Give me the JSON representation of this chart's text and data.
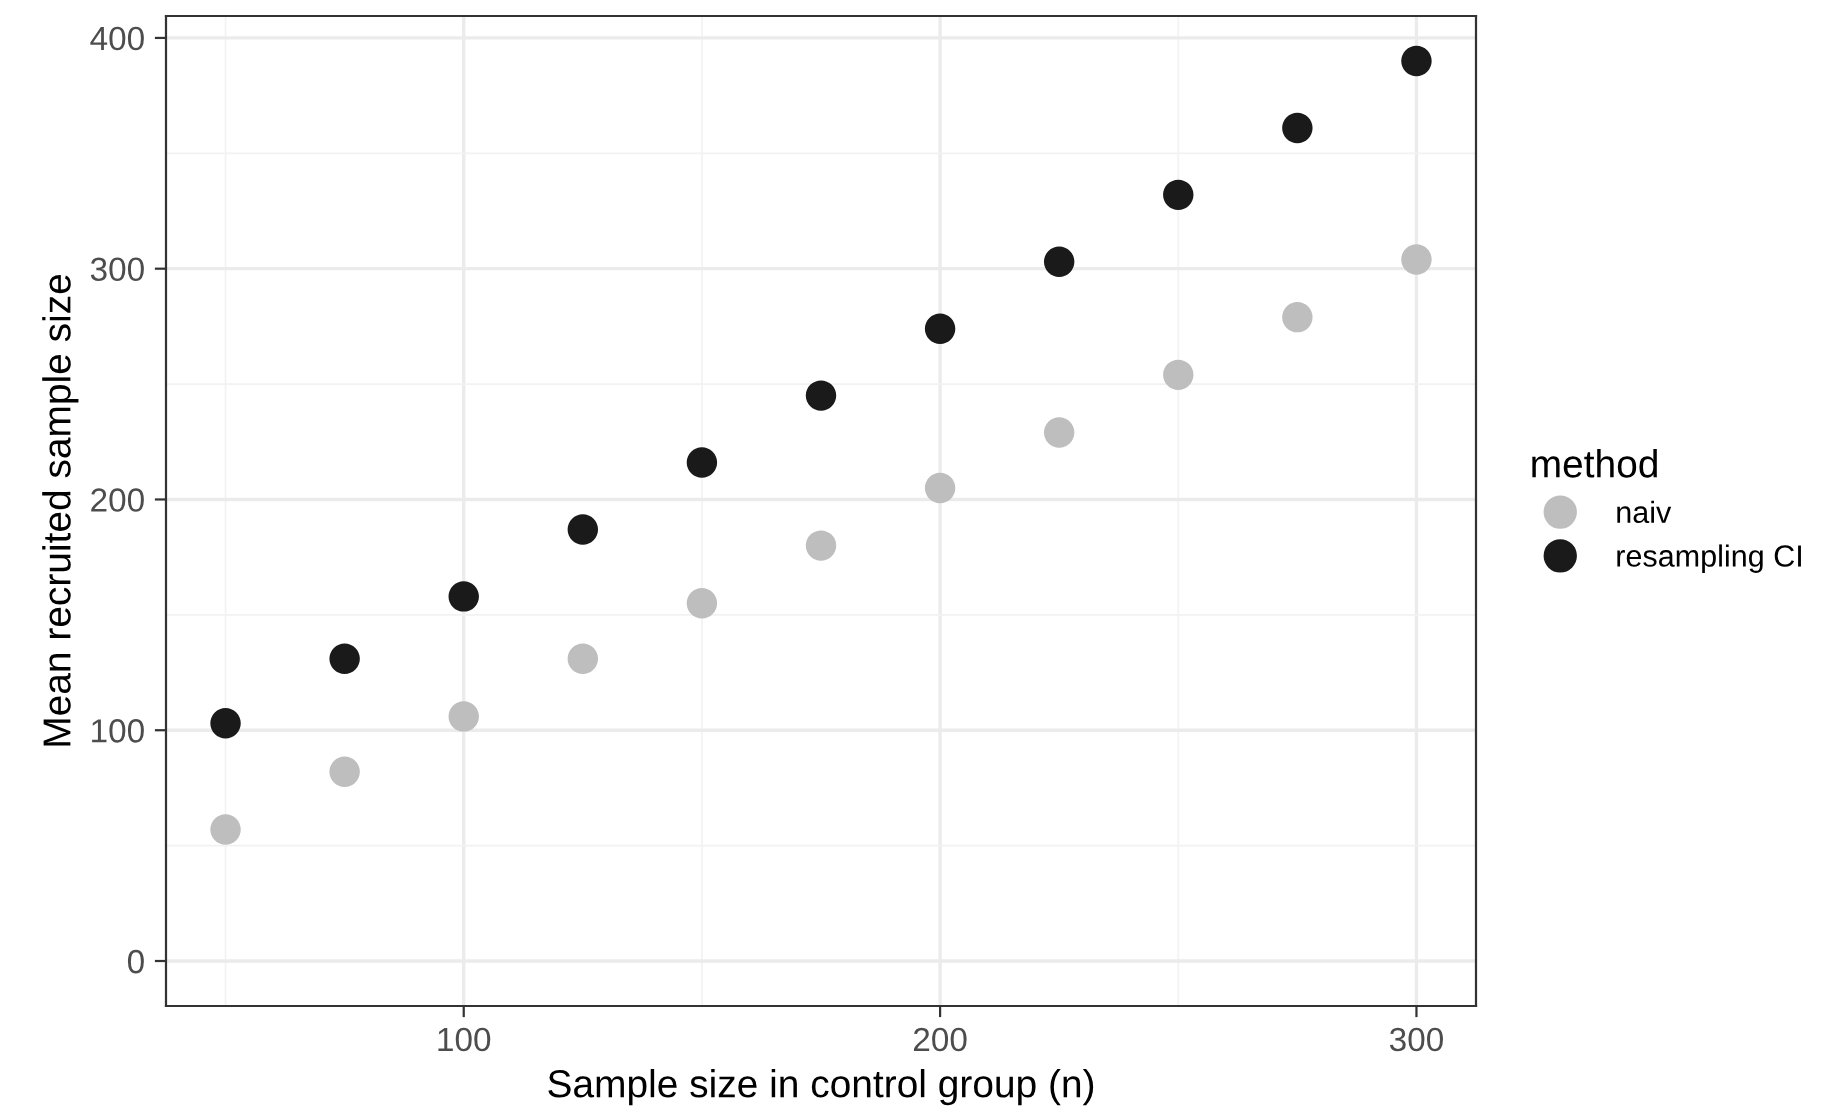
{
  "chart_data": {
    "type": "scatter",
    "xlabel": "Sample size in control group (n)",
    "ylabel": "Mean recruited sample size",
    "legend_title": "method",
    "x": [
      50,
      75,
      100,
      125,
      150,
      175,
      200,
      225,
      250,
      275,
      300
    ],
    "series": [
      {
        "name": "naiv",
        "color": "#bebebe",
        "values": [
          57,
          82,
          106,
          131,
          155,
          180,
          205,
          229,
          254,
          279,
          304
        ]
      },
      {
        "name": "resampling CI",
        "color": "#1a1a1a",
        "values": [
          103,
          131,
          158,
          187,
          216,
          245,
          274,
          303,
          332,
          361,
          390
        ]
      }
    ],
    "xlim": [
      37.5,
      312.5
    ],
    "xticks": [
      100,
      200,
      300
    ],
    "ylim": [
      -19.5,
      409.5
    ],
    "yticks": [
      0,
      100,
      200,
      300,
      400
    ],
    "grid": true,
    "legend": "right",
    "marker": "circle"
  }
}
